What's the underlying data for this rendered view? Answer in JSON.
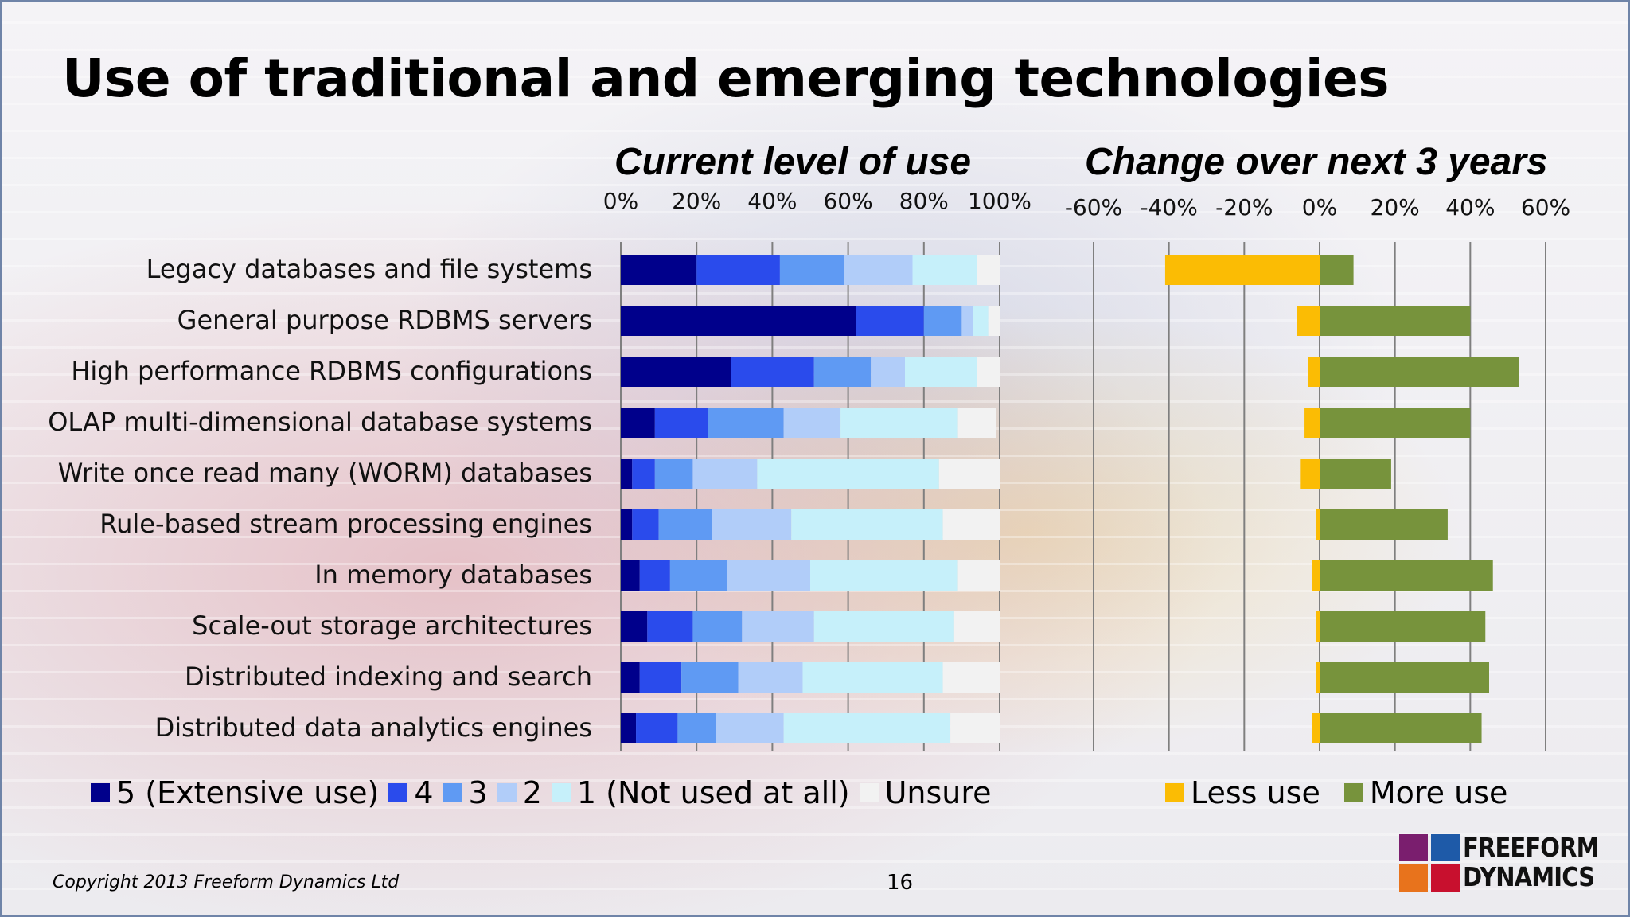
{
  "slide": {
    "title": "Use of traditional and emerging technologies",
    "copyright": "Copyright 2013 Freeform Dynamics Ltd",
    "page_number": "16",
    "logo": {
      "line1": "FREEFORM",
      "line2": "DYNAMICS",
      "colors": [
        "#7a1e6e",
        "#1e5aa8",
        "#e8731c",
        "#c8102e"
      ]
    }
  },
  "chart_data": [
    {
      "type": "bar",
      "orientation": "horizontal",
      "stacked": true,
      "title": "Current level of use",
      "xlim": [
        0,
        100
      ],
      "x_ticks": [
        "0%",
        "20%",
        "40%",
        "60%",
        "80%",
        "100%"
      ],
      "categories": [
        "Legacy databases and file systems",
        "General purpose RDBMS servers",
        "High performance RDBMS configurations",
        "OLAP multi-dimensional database systems",
        "Write once read many (WORM) databases",
        "Rule-based stream processing engines",
        "In memory databases",
        "Scale-out storage architectures",
        "Distributed indexing and search",
        "Distributed data analytics engines"
      ],
      "series": [
        {
          "name": "5 (Extensive use)",
          "color": "#00008b",
          "values": [
            20,
            62,
            29,
            9,
            3,
            3,
            5,
            7,
            5,
            4
          ]
        },
        {
          "name": "4",
          "color": "#2a4bec",
          "values": [
            22,
            18,
            22,
            14,
            6,
            7,
            8,
            12,
            11,
            11
          ]
        },
        {
          "name": "3",
          "color": "#5f9af3",
          "values": [
            17,
            10,
            15,
            20,
            10,
            14,
            15,
            13,
            15,
            10
          ]
        },
        {
          "name": "2",
          "color": "#b1cdf9",
          "values": [
            18,
            3,
            9,
            15,
            17,
            21,
            22,
            19,
            17,
            18
          ]
        },
        {
          "name": "1 (Not used at all)",
          "color": "#c6f0fa",
          "values": [
            17,
            4,
            19,
            31,
            48,
            40,
            39,
            37,
            37,
            44
          ]
        },
        {
          "name": "Unsure",
          "color": "#f2f2f2",
          "values": [
            6,
            3,
            6,
            10,
            16,
            15,
            11,
            12,
            15,
            13
          ]
        }
      ]
    },
    {
      "type": "bar",
      "orientation": "horizontal",
      "title": "Change over next 3 years",
      "xlim": [
        -60,
        60
      ],
      "x_ticks": [
        "-60%",
        "-40%",
        "-20%",
        "0%",
        "20%",
        "40%",
        "60%"
      ],
      "categories": [
        "Legacy databases and file systems",
        "General purpose RDBMS servers",
        "High performance RDBMS configurations",
        "OLAP multi-dimensional database systems",
        "Write once read many (WORM) databases",
        "Rule-based stream processing engines",
        "In memory databases",
        "Scale-out storage architectures",
        "Distributed indexing and search",
        "Distributed data analytics engines"
      ],
      "series": [
        {
          "name": "Less use",
          "color": "#fbbc04",
          "values": [
            -41,
            -6,
            -3,
            -4,
            -5,
            -1,
            -2,
            -1,
            -1,
            -2
          ]
        },
        {
          "name": "More use",
          "color": "#77933c",
          "values": [
            9,
            40,
            53,
            40,
            19,
            34,
            46,
            44,
            45,
            43
          ]
        }
      ]
    }
  ]
}
